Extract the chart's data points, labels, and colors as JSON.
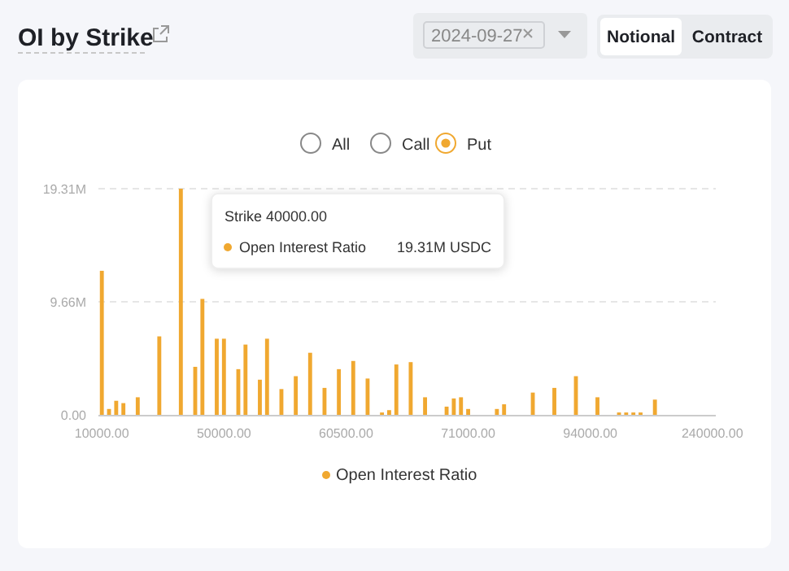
{
  "chart_data": {
    "type": "bar",
    "title": "OI by Strike",
    "categories": [
      "10000.00",
      null,
      null,
      null,
      null,
      null,
      null,
      null,
      null,
      null,
      null,
      null,
      null,
      null,
      null,
      null,
      null,
      "50000.00",
      null,
      null,
      null,
      null,
      null,
      null,
      null,
      null,
      null,
      null,
      null,
      null,
      null,
      null,
      null,
      null,
      "60500.00",
      null,
      null,
      null,
      null,
      null,
      null,
      null,
      null,
      null,
      null,
      null,
      null,
      null,
      null,
      null,
      null,
      "71000.00",
      null,
      null,
      null,
      null,
      null,
      null,
      null,
      null,
      null,
      null,
      null,
      null,
      null,
      null,
      null,
      null,
      "94000.00",
      null,
      null,
      null,
      null,
      null,
      null,
      null,
      null,
      null,
      null,
      null,
      null,
      null,
      null,
      null,
      null,
      "240000.00"
    ],
    "series": [
      {
        "name": "Open Interest Ratio",
        "color": "#f0a830",
        "values": [
          12.3,
          0.5,
          1.2,
          1.0,
          null,
          1.5,
          null,
          null,
          6.7,
          null,
          null,
          19.31,
          null,
          4.1,
          9.9,
          null,
          6.5,
          6.5,
          null,
          3.9,
          6.0,
          null,
          3.0,
          6.5,
          null,
          2.2,
          null,
          3.3,
          null,
          5.3,
          null,
          2.3,
          null,
          3.9,
          null,
          4.6,
          null,
          3.1,
          null,
          0.2,
          0.4,
          4.3,
          null,
          4.5,
          null,
          1.5,
          null,
          null,
          0.7,
          1.4,
          1.5,
          0.5,
          null,
          null,
          null,
          0.5,
          0.9,
          null,
          null,
          null,
          1.9,
          null,
          null,
          2.3,
          null,
          null,
          3.3,
          null,
          null,
          1.5,
          null,
          null,
          0.2,
          0.2,
          0.2,
          0.2,
          null,
          1.3,
          null,
          null,
          null,
          null,
          null,
          null,
          null,
          null
        ]
      }
    ],
    "ylim": [
      0,
      19.31
    ],
    "yticks": [
      {
        "value": 0,
        "label": "0.00"
      },
      {
        "value": 9.655,
        "label": "9.66M"
      },
      {
        "value": 19.31,
        "label": "19.31M"
      }
    ],
    "grid": "y",
    "legend": "bottom",
    "annotations": [
      "2024-09-27",
      "Notional",
      "Contract",
      "All",
      "Call",
      "Put",
      "Strike 40000.00",
      "Open Interest Ratio",
      "19.31M USDC"
    ]
  }
}
